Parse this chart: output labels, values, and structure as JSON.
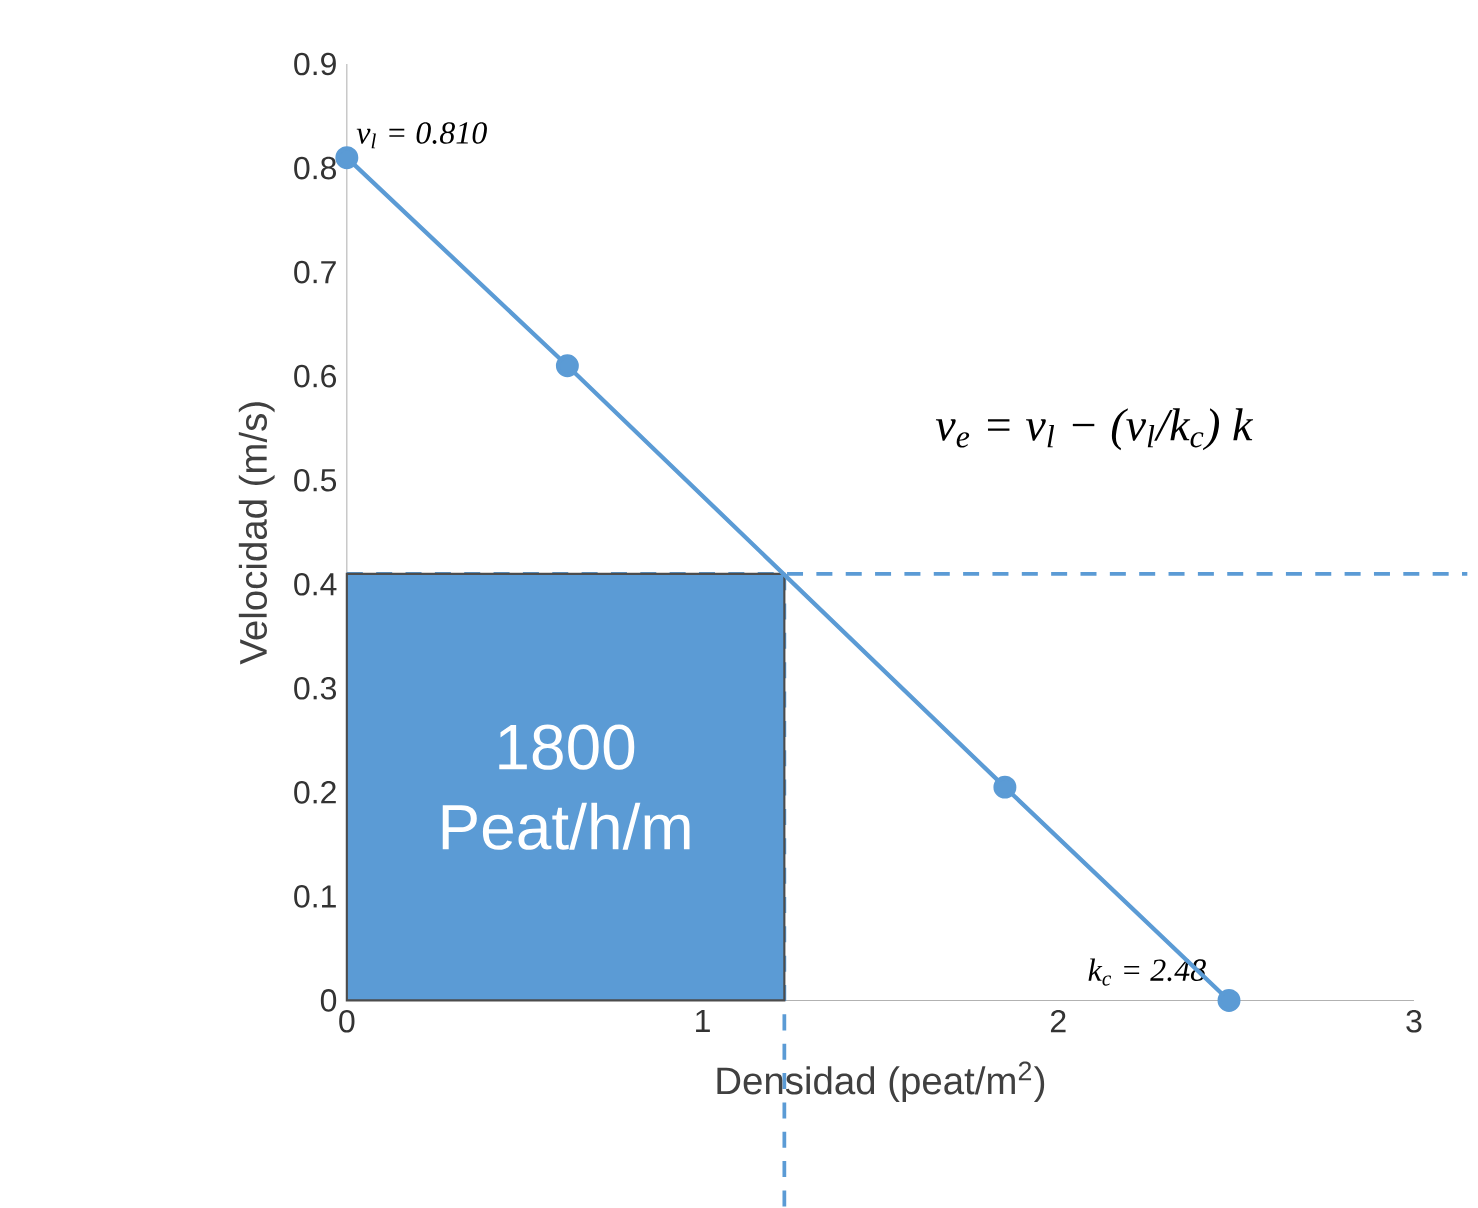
{
  "chart_data": {
    "type": "line",
    "xlabel": "Densidad (peat/m$^{2}$)",
    "ylabel": "Velocidad (m/s)",
    "x": [
      0,
      0.62,
      1.85,
      2.48
    ],
    "series": [
      {
        "color": "#5b9bd5",
        "values": [
          0.81,
          0.61,
          0.205,
          0
        ]
      }
    ],
    "xlim": [
      0,
      3
    ],
    "xticks": [
      0,
      1,
      2,
      3
    ],
    "ylim": [
      0,
      0.9
    ],
    "yticks": [
      0,
      0.1,
      0.2,
      0.3,
      0.4,
      0.5,
      0.6,
      0.7,
      0.8,
      0.9
    ],
    "marker": "circle",
    "line_style": "solid",
    "grid": false,
    "bands": [
      {
        "axis": "x",
        "from": 0,
        "to": 1.23,
        "label": "1800 Peat/h/m",
        "color": "#5b9bd5"
      }
    ],
    "ref_lines": [
      {
        "axis": "y",
        "value": 0.41,
        "color": "#5b9bd5",
        "line_style": "dashed"
      },
      {
        "axis": "x",
        "value": 1.23,
        "color": "#5b9bd5",
        "line_style": "dashed"
      }
    ],
    "annotations": [
      {
        "text": "v$_{l}$ = 0.810",
        "x": 0,
        "y": 0.81
      },
      {
        "text": "k$_{c}$ = 2.48",
        "x": 2.48,
        "y": 0
      },
      "v$_{e}$ = v$_{l}$ − (v$_{l}$/k$_{c}$) k"
    ]
  }
}
